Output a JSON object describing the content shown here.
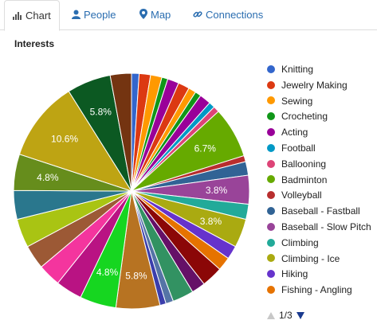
{
  "tabs": [
    {
      "label": "Chart",
      "icon": "bar-chart-icon",
      "active": true
    },
    {
      "label": "People",
      "icon": "person-icon",
      "active": false
    },
    {
      "label": "Map",
      "icon": "map-pin-icon",
      "active": false
    },
    {
      "label": "Connections",
      "icon": "link-icon",
      "active": false
    }
  ],
  "chart_title": "Interests",
  "legend": [
    {
      "label": "Knitting",
      "color": "#3366cc"
    },
    {
      "label": "Jewelry Making",
      "color": "#dc3912"
    },
    {
      "label": "Sewing",
      "color": "#ff9900"
    },
    {
      "label": "Crocheting",
      "color": "#109618"
    },
    {
      "label": "Acting",
      "color": "#990099"
    },
    {
      "label": "Football",
      "color": "#0099c6"
    },
    {
      "label": "Ballooning",
      "color": "#dd4477"
    },
    {
      "label": "Badminton",
      "color": "#66aa00"
    },
    {
      "label": "Volleyball",
      "color": "#b82e2e"
    },
    {
      "label": "Baseball - Fastball",
      "color": "#316395"
    },
    {
      "label": "Baseball - Slow Pitch",
      "color": "#994499"
    },
    {
      "label": "Climbing",
      "color": "#22aa99"
    },
    {
      "label": "Climbing - Ice",
      "color": "#aaaa11"
    },
    {
      "label": "Hiking",
      "color": "#6633cc"
    },
    {
      "label": "Fishing - Angling",
      "color": "#e67300"
    }
  ],
  "pager": {
    "text": "1/3"
  },
  "chart_data": {
    "type": "pie",
    "title": "Interests",
    "slices": [
      {
        "value": 1.0,
        "color": "#3366cc"
      },
      {
        "value": 1.5,
        "color": "#dc3912"
      },
      {
        "value": 1.5,
        "color": "#ff9900"
      },
      {
        "value": 0.8,
        "color": "#109618"
      },
      {
        "value": 1.5,
        "color": "#990099"
      },
      {
        "value": 1.5,
        "color": "#dc3912"
      },
      {
        "value": 1.0,
        "color": "#ff9900"
      },
      {
        "value": 0.8,
        "color": "#109618"
      },
      {
        "value": 1.5,
        "color": "#990099"
      },
      {
        "value": 0.8,
        "color": "#0099c6"
      },
      {
        "value": 0.8,
        "color": "#dd4477"
      },
      {
        "value": 6.7,
        "color": "#66aa00",
        "label": "6.7%"
      },
      {
        "value": 0.8,
        "color": "#b82e2e"
      },
      {
        "value": 1.8,
        "color": "#316395"
      },
      {
        "value": 3.8,
        "color": "#994499",
        "label": "3.8%"
      },
      {
        "value": 2.0,
        "color": "#22aa99"
      },
      {
        "value": 3.8,
        "color": "#aaaa11",
        "label": "3.8%"
      },
      {
        "value": 1.8,
        "color": "#6633cc"
      },
      {
        "value": 1.8,
        "color": "#e67300"
      },
      {
        "value": 2.8,
        "color": "#8b0707"
      },
      {
        "value": 1.8,
        "color": "#651067"
      },
      {
        "value": 2.8,
        "color": "#329262"
      },
      {
        "value": 1.0,
        "color": "#5574a6"
      },
      {
        "value": 0.8,
        "color": "#3b3eac"
      },
      {
        "value": 5.8,
        "color": "#b77322",
        "label": "5.8%"
      },
      {
        "value": 4.8,
        "color": "#16d620",
        "label": "4.8%"
      },
      {
        "value": 3.5,
        "color": "#b91383"
      },
      {
        "value": 3.0,
        "color": "#f4359e"
      },
      {
        "value": 3.2,
        "color": "#9c5935"
      },
      {
        "value": 3.8,
        "color": "#a9c413"
      },
      {
        "value": 3.8,
        "color": "#2a778d"
      },
      {
        "value": 4.8,
        "color": "#668d1c",
        "label": "4.8%"
      },
      {
        "value": 10.6,
        "color": "#bea413",
        "label": "10.6%"
      },
      {
        "value": 5.8,
        "color": "#0c5922",
        "label": "5.8%"
      },
      {
        "value": 2.8,
        "color": "#743411"
      }
    ]
  }
}
